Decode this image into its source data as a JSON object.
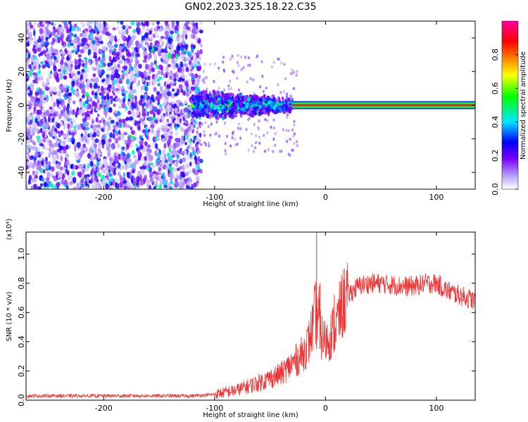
{
  "title": "GN02.2023.325.18.22.C35",
  "chart_data": [
    {
      "type": "heatmap",
      "xlabel": "Height of straight line (km)",
      "ylabel": "Frequency (Hz)",
      "xlim": [
        -270,
        135
      ],
      "ylim": [
        -50,
        50
      ],
      "xticks": [
        -200,
        -100,
        0,
        100
      ],
      "yticks": [
        -40,
        -20,
        0,
        20,
        40
      ],
      "colorbar": {
        "label": "Normalized spectral amplitude",
        "range": [
          0.0,
          1.0
        ],
        "ticks": [
          0.0,
          0.2,
          0.4,
          0.6,
          0.8
        ],
        "colormap": "rainbow",
        "colors": [
          "#ffffff",
          "#7b00ff",
          "#0000ff",
          "#00e5ff",
          "#00ff00",
          "#ffff00",
          "#ff7f00",
          "#ff0000",
          "#ff0080"
        ]
      },
      "regions": [
        {
          "x": [
            -270,
            -120
          ],
          "freq": [
            -50,
            50
          ],
          "amplitude": 0.25,
          "description": "broadband noise"
        },
        {
          "x": [
            -120,
            -30
          ],
          "freq": [
            -10,
            10
          ],
          "amplitude": 0.4
        },
        {
          "x": [
            -30,
            135
          ],
          "freq": [
            -1,
            1
          ],
          "amplitude": 0.95
        }
      ]
    },
    {
      "type": "line",
      "xlabel": "Height of straight line (km)",
      "ylabel": "SNR (10 * v/v)",
      "yscale_label": "(x10⁴)",
      "xlim": [
        -270,
        135
      ],
      "ylim": [
        0,
        1.15
      ],
      "xticks": [
        -200,
        -100,
        0,
        100
      ],
      "yticks": [
        0.0,
        0.2,
        0.4,
        0.6,
        0.8,
        1.0
      ],
      "series": [
        {
          "color": "#ee3333",
          "x": [
            -270,
            -240,
            -200,
            -160,
            -120,
            -100,
            -80,
            -60,
            -40,
            -30,
            -20,
            -15,
            -10,
            -8,
            -5,
            0,
            5,
            10,
            15,
            20,
            30,
            40,
            50,
            60,
            70,
            80,
            90,
            100,
            110,
            120,
            135
          ],
          "y": [
            0.03,
            0.03,
            0.03,
            0.03,
            0.03,
            0.04,
            0.07,
            0.12,
            0.18,
            0.25,
            0.32,
            0.4,
            0.55,
            1.15,
            0.45,
            0.4,
            0.45,
            0.52,
            0.65,
            0.72,
            0.78,
            0.8,
            0.8,
            0.79,
            0.78,
            0.78,
            0.8,
            0.8,
            0.75,
            0.72,
            0.68
          ]
        }
      ],
      "spikes": [
        {
          "x": -8,
          "y": 1.15
        },
        {
          "x": -5,
          "y": 0.8
        },
        {
          "x": 8,
          "y": 0.72
        }
      ]
    }
  ]
}
